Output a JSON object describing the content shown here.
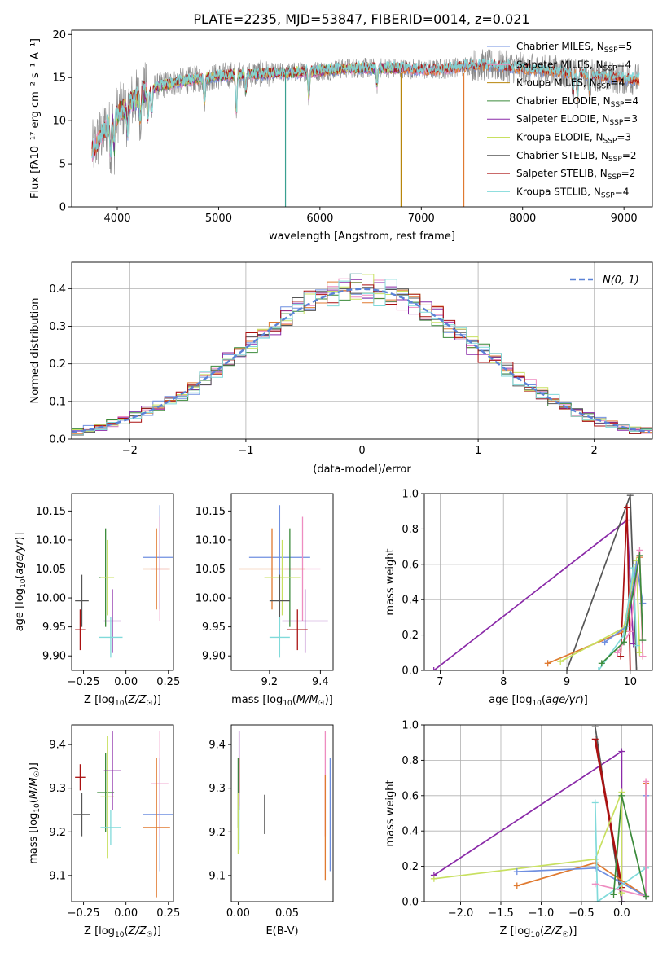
{
  "title": "PLATE=2235, MJD=53847, FIBERID=0014, z=0.021",
  "colors": {
    "Chabrier MILES": "#6f8fe0",
    "Salpeter MILES": "#ee8cc0",
    "Kroupa MILES": "#b8860b",
    "Chabrier ELODIE": "#3a8a3a",
    "Salpeter ELODIE": "#8a2aa8",
    "Kroupa ELODIE": "#c8e060",
    "Chabrier STELIB": "#555555",
    "Salpeter STELIB": "#aa1111",
    "Kroupa STELIB": "#80dada",
    "orange": "#e07a30"
  },
  "chart_data": [
    {
      "id": "spectrum",
      "type": "line",
      "title": "PLATE=2235, MJD=53847, FIBERID=0014, z=0.021",
      "xlabel": "wavelength [Angstrom, rest frame]",
      "ylabel": "Flux [fλ10⁻¹⁷ erg cm⁻² s⁻¹ A⁻¹]",
      "xlim": [
        3550,
        9280
      ],
      "ylim": [
        0,
        20.5
      ],
      "xticks": [
        4000,
        5000,
        6000,
        7000,
        8000,
        9000
      ],
      "yticks": [
        0,
        5,
        10,
        15,
        20
      ],
      "legend_position": "top-right",
      "legend": [
        {
          "name": "Chabrier MILES",
          "label": "Chabrier MILES, N",
          "sub": "SSP",
          "n": "=5"
        },
        {
          "name": "Salpeter MILES",
          "label": "Salpeter MILES, N",
          "sub": "SSP",
          "n": "=4"
        },
        {
          "name": "Kroupa MILES",
          "label": "Kroupa MILES, N",
          "sub": "SSP",
          "n": "=4"
        },
        {
          "name": "Chabrier ELODIE",
          "label": "Chabrier ELODIE, N",
          "sub": "SSP",
          "n": "=4"
        },
        {
          "name": "Salpeter ELODIE",
          "label": "Salpeter ELODIE, N",
          "sub": "SSP",
          "n": "=3"
        },
        {
          "name": "Kroupa ELODIE",
          "label": "Kroupa ELODIE, N",
          "sub": "SSP",
          "n": "=3"
        },
        {
          "name": "Chabrier STELIB",
          "label": "Chabrier STELIB, N",
          "sub": "SSP",
          "n": "=2"
        },
        {
          "name": "Salpeter STELIB",
          "label": "Salpeter STELIB, N",
          "sub": "SSP",
          "n": "=2"
        },
        {
          "name": "Kroupa STELIB",
          "label": "Kroupa STELIB, N",
          "sub": "SSP",
          "n": "=4"
        }
      ],
      "continuum": [
        [
          3750,
          6.5
        ],
        [
          3850,
          8.5
        ],
        [
          3950,
          10.2
        ],
        [
          4050,
          11.2
        ],
        [
          4150,
          12.3
        ],
        [
          4300,
          13.6
        ],
        [
          4500,
          14.3
        ],
        [
          4700,
          14.7
        ],
        [
          4900,
          15.0
        ],
        [
          5100,
          15.3
        ],
        [
          5300,
          15.4
        ],
        [
          5500,
          15.5
        ],
        [
          5700,
          15.6
        ],
        [
          5900,
          15.7
        ],
        [
          6100,
          15.9
        ],
        [
          6300,
          16.1
        ],
        [
          6500,
          16.1
        ],
        [
          6700,
          16.1
        ],
        [
          6900,
          16.0
        ],
        [
          7100,
          15.9
        ],
        [
          7300,
          16.1
        ],
        [
          7500,
          16.5
        ],
        [
          7700,
          16.4
        ],
        [
          7900,
          16.2
        ],
        [
          8100,
          15.9
        ],
        [
          8300,
          15.8
        ],
        [
          8500,
          15.5
        ],
        [
          8700,
          15.3
        ],
        [
          8900,
          15.0
        ],
        [
          9100,
          14.8
        ]
      ],
      "dips": [
        [
          5660,
          0
        ],
        [
          6800,
          0
        ],
        [
          7420,
          0
        ]
      ]
    },
    {
      "id": "residuals",
      "type": "line",
      "xlabel": "(data-model)/error",
      "ylabel": "Normed distribution",
      "xlim": [
        -2.5,
        2.5
      ],
      "ylim": [
        0,
        0.47
      ],
      "xticks": [
        -2,
        -1,
        0,
        1,
        2
      ],
      "yticks": [
        0.0,
        0.1,
        0.2,
        0.3,
        0.4
      ],
      "bin_width": 0.1,
      "legend_position": "top-right",
      "legend": {
        "name": "N(0, 1)",
        "style": "dashed"
      }
    },
    {
      "id": "age_vs_Z",
      "type": "scatter",
      "xlabel": "Z [log10(Z/Z☉)]",
      "ylabel": "age [log10(age/yr)]",
      "xlim": [
        -0.32,
        0.28
      ],
      "ylim": [
        9.875,
        10.18
      ],
      "xticks": [
        -0.25,
        0.0,
        0.25
      ],
      "yticks": [
        9.9,
        9.95,
        10.0,
        10.05,
        10.1,
        10.15
      ],
      "points": [
        {
          "series": "Chabrier MILES",
          "x": 0.2,
          "y": 10.07,
          "xerr": 0.1,
          "yerr": 0.09
        },
        {
          "series": "Salpeter MILES",
          "x": 0.2,
          "y": 10.05,
          "xerr": 0.05,
          "yerr": 0.09
        },
        {
          "series": "orange",
          "x": 0.18,
          "y": 10.05,
          "xerr": 0.08,
          "yerr": 0.07
        },
        {
          "series": "Chabrier ELODIE",
          "x": -0.12,
          "y": 10.035,
          "xerr": 0.04,
          "yerr": 0.085
        },
        {
          "series": "Kroupa ELODIE",
          "x": -0.11,
          "y": 10.035,
          "xerr": 0.04,
          "yerr": 0.065
        },
        {
          "series": "Salpeter ELODIE",
          "x": -0.08,
          "y": 9.96,
          "xerr": 0.05,
          "yerr": 0.055
        },
        {
          "series": "Chabrier STELIB",
          "x": -0.26,
          "y": 9.995,
          "xerr": 0.04,
          "yerr": 0.045
        },
        {
          "series": "Salpeter STELIB",
          "x": -0.27,
          "y": 9.945,
          "xerr": 0.03,
          "yerr": 0.035
        },
        {
          "series": "Kroupa STELIB",
          "x": -0.09,
          "y": 9.932,
          "xerr": 0.07,
          "yerr": 0.035
        }
      ]
    },
    {
      "id": "age_vs_mass",
      "type": "scatter",
      "xlabel": "mass [log10(M/M☉)]",
      "xlim": [
        9.05,
        9.45
      ],
      "ylim": [
        9.875,
        10.18
      ],
      "xticks": [
        9.2,
        9.4
      ],
      "yticks": [
        9.9,
        9.95,
        10.0,
        10.05,
        10.1,
        10.15
      ],
      "points": [
        {
          "series": "Chabrier MILES",
          "x": 9.24,
          "y": 10.07,
          "xerr": 0.12,
          "yerr": 0.09
        },
        {
          "series": "Salpeter MILES",
          "x": 9.33,
          "y": 10.05,
          "xerr": 0.07,
          "yerr": 0.09
        },
        {
          "series": "orange",
          "x": 9.21,
          "y": 10.05,
          "xerr": 0.13,
          "yerr": 0.07
        },
        {
          "series": "Chabrier ELODIE",
          "x": 9.28,
          "y": 10.035,
          "xerr": 0.04,
          "yerr": 0.085
        },
        {
          "series": "Kroupa ELODIE",
          "x": 9.25,
          "y": 10.035,
          "xerr": 0.07,
          "yerr": 0.065
        },
        {
          "series": "Salpeter ELODIE",
          "x": 9.34,
          "y": 9.96,
          "xerr": 0.09,
          "yerr": 0.055
        },
        {
          "series": "Chabrier STELIB",
          "x": 9.24,
          "y": 9.995,
          "xerr": 0.04,
          "yerr": 0.045
        },
        {
          "series": "Salpeter STELIB",
          "x": 9.31,
          "y": 9.945,
          "xerr": 0.04,
          "yerr": 0.035
        },
        {
          "series": "Kroupa STELIB",
          "x": 9.24,
          "y": 9.932,
          "xerr": 0.04,
          "yerr": 0.035
        }
      ]
    },
    {
      "id": "massweight_vs_age",
      "type": "line",
      "xlabel": "age [log10(age/yr)]",
      "ylabel": "mass weight",
      "xlim": [
        6.75,
        10.35
      ],
      "ylim": [
        0,
        1.0
      ],
      "xticks": [
        7,
        8,
        9,
        10
      ],
      "yticks": [
        0.0,
        0.2,
        0.4,
        0.6,
        0.8,
        1.0
      ],
      "series": [
        {
          "name": "Salpeter ELODIE",
          "points": [
            [
              6.9,
              0.0
            ],
            [
              9.95,
              0.85
            ],
            [
              10.05,
              0.15
            ]
          ]
        },
        {
          "name": "Chabrier STELIB",
          "points": [
            [
              9.0,
              0.0
            ],
            [
              10.0,
              0.99
            ],
            [
              10.1,
              0.0
            ]
          ]
        },
        {
          "name": "Salpeter STELIB",
          "points": [
            [
              9.85,
              0.08
            ],
            [
              9.95,
              0.92
            ],
            [
              10.0,
              0.0
            ]
          ]
        },
        {
          "name": "orange",
          "points": [
            [
              8.7,
              0.04
            ],
            [
              9.9,
              0.22
            ],
            [
              10.15,
              0.64
            ],
            [
              10.2,
              0.08
            ]
          ]
        },
        {
          "name": "Kroupa ELODIE",
          "points": [
            [
              8.9,
              0.05
            ],
            [
              9.9,
              0.24
            ],
            [
              10.1,
              0.62
            ],
            [
              10.15,
              0.1
            ]
          ]
        },
        {
          "name": "Kroupa STELIB",
          "points": [
            [
              9.5,
              0.0
            ],
            [
              9.9,
              0.2
            ],
            [
              10.05,
              0.58
            ],
            [
              10.1,
              0.14
            ]
          ]
        },
        {
          "name": "Chabrier MILES",
          "points": [
            [
              9.6,
              0.16
            ],
            [
              9.95,
              0.25
            ],
            [
              10.1,
              0.6
            ],
            [
              10.2,
              0.38
            ]
          ]
        },
        {
          "name": "Salpeter MILES",
          "points": [
            [
              9.8,
              0.1
            ],
            [
              10.0,
              0.22
            ],
            [
              10.15,
              0.68
            ],
            [
              10.2,
              0.08
            ]
          ]
        },
        {
          "name": "Chabrier ELODIE",
          "points": [
            [
              9.55,
              0.04
            ],
            [
              9.9,
              0.16
            ],
            [
              10.15,
              0.65
            ],
            [
              10.2,
              0.17
            ]
          ]
        }
      ]
    },
    {
      "id": "mass_vs_Z",
      "type": "scatter",
      "xlabel": "Z [log10(Z/Z☉)]",
      "ylabel": "mass [log10(M/M☉)]",
      "xlim": [
        -0.32,
        0.28
      ],
      "ylim": [
        9.04,
        9.445
      ],
      "xticks": [
        -0.25,
        0.0,
        0.25
      ],
      "yticks": [
        9.1,
        9.2,
        9.3,
        9.4
      ],
      "points": [
        {
          "series": "Chabrier MILES",
          "x": 0.2,
          "y": 9.24,
          "xerr": 0.1,
          "yerr": 0.13
        },
        {
          "series": "Salpeter MILES",
          "x": 0.2,
          "y": 9.31,
          "xerr": 0.05,
          "yerr": 0.12
        },
        {
          "series": "orange",
          "x": 0.18,
          "y": 9.21,
          "xerr": 0.08,
          "yerr": 0.16
        },
        {
          "series": "Chabrier ELODIE",
          "x": -0.12,
          "y": 9.29,
          "xerr": 0.05,
          "yerr": 0.09
        },
        {
          "series": "Kroupa ELODIE",
          "x": -0.11,
          "y": 9.28,
          "xerr": 0.04,
          "yerr": 0.14
        },
        {
          "series": "Salpeter ELODIE",
          "x": -0.08,
          "y": 9.34,
          "xerr": 0.05,
          "yerr": 0.09
        },
        {
          "series": "Chabrier STELIB",
          "x": -0.26,
          "y": 9.24,
          "xerr": 0.05,
          "yerr": 0.05
        },
        {
          "series": "Salpeter STELIB",
          "x": -0.27,
          "y": 9.325,
          "xerr": 0.03,
          "yerr": 0.03
        },
        {
          "series": "Kroupa STELIB",
          "x": -0.09,
          "y": 9.21,
          "xerr": 0.06,
          "yerr": 0.04
        }
      ]
    },
    {
      "id": "mass_vs_EBV",
      "type": "scatter",
      "xlabel": "E(B-V)",
      "xlim": [
        -0.007,
        0.097
      ],
      "ylim": [
        9.04,
        9.445
      ],
      "xticks": [
        0.0,
        0.05
      ],
      "yticks": [
        9.1,
        9.2,
        9.3,
        9.4
      ],
      "points": [
        {
          "series": "Chabrier MILES",
          "x": 0.094,
          "y": 9.24,
          "xerr": 0.0,
          "yerr": 0.13
        },
        {
          "series": "Salpeter MILES",
          "x": 0.089,
          "y": 9.31,
          "xerr": 0.0,
          "yerr": 0.12
        },
        {
          "series": "orange",
          "x": 0.089,
          "y": 9.21,
          "xerr": 0.0,
          "yerr": 0.12
        },
        {
          "series": "Chabrier ELODIE",
          "x": 0.0,
          "y": 9.29,
          "xerr": 0.0,
          "yerr": 0.08
        },
        {
          "series": "Kroupa ELODIE",
          "x": 0.0,
          "y": 9.22,
          "xerr": 0.0,
          "yerr": 0.07
        },
        {
          "series": "Salpeter ELODIE",
          "x": 0.001,
          "y": 9.34,
          "xerr": 0.0,
          "yerr": 0.09
        },
        {
          "series": "Chabrier STELIB",
          "x": 0.027,
          "y": 9.24,
          "xerr": 0.0,
          "yerr": 0.045
        },
        {
          "series": "Salpeter STELIB",
          "x": 0.001,
          "y": 9.33,
          "xerr": 0.0,
          "yerr": 0.04
        },
        {
          "series": "Kroupa STELIB",
          "x": 0.001,
          "y": 9.21,
          "xerr": 0.0,
          "yerr": 0.05
        }
      ]
    },
    {
      "id": "massweight_vs_Z",
      "type": "line",
      "xlabel": "Z [log10(Z/Z☉)]",
      "ylabel": "mass weight",
      "xlim": [
        -2.45,
        0.38
      ],
      "ylim": [
        0,
        1.0
      ],
      "xticks": [
        -2.0,
        -1.5,
        -1.0,
        -0.5,
        0.0
      ],
      "yticks": [
        0.0,
        0.2,
        0.4,
        0.6,
        0.8,
        1.0
      ],
      "series": [
        {
          "name": "Salpeter ELODIE",
          "points": [
            [
              -2.33,
              0.15
            ],
            [
              0.0,
              0.85
            ],
            [
              0.0,
              0.0
            ]
          ]
        },
        {
          "name": "Chabrier STELIB",
          "points": [
            [
              -0.33,
              0.99
            ],
            [
              0.0,
              0.0
            ]
          ]
        },
        {
          "name": "Salpeter STELIB",
          "points": [
            [
              -0.33,
              0.92
            ],
            [
              0.0,
              0.08
            ]
          ]
        },
        {
          "name": "Kroupa ELODIE",
          "points": [
            [
              -2.33,
              0.13
            ],
            [
              -0.33,
              0.24
            ],
            [
              0.0,
              0.62
            ],
            [
              0.0,
              0.05
            ]
          ]
        },
        {
          "name": "orange",
          "points": [
            [
              -1.3,
              0.09
            ],
            [
              -0.33,
              0.22
            ],
            [
              0.3,
              0.03
            ],
            [
              0.3,
              0.67
            ]
          ]
        },
        {
          "name": "Chabrier MILES",
          "points": [
            [
              -1.3,
              0.17
            ],
            [
              -0.33,
              0.19
            ],
            [
              0.3,
              0.03
            ],
            [
              0.3,
              0.6
            ]
          ]
        },
        {
          "name": "Kroupa STELIB",
          "points": [
            [
              -0.33,
              0.56
            ],
            [
              -0.3,
              0.0
            ],
            [
              0.3,
              0.19
            ]
          ]
        },
        {
          "name": "Salpeter MILES",
          "points": [
            [
              -0.33,
              0.1
            ],
            [
              0.3,
              0.03
            ],
            [
              0.3,
              0.68
            ]
          ]
        },
        {
          "name": "Chabrier ELODIE",
          "points": [
            [
              -0.1,
              0.04
            ],
            [
              0.0,
              0.6
            ],
            [
              0.3,
              0.03
            ]
          ]
        }
      ]
    }
  ]
}
